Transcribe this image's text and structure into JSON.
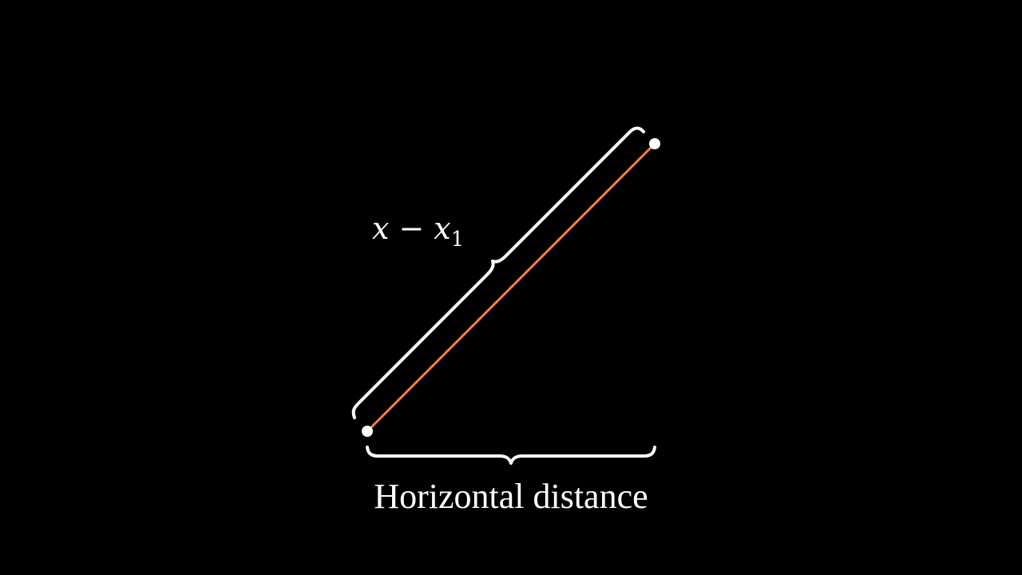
{
  "colors": {
    "background": "#000000",
    "segment": "#f5813a",
    "brace": "#ffffff",
    "point": "#ffffff",
    "text": "#ffffff"
  },
  "diagonal_label": {
    "variable": "x",
    "operator": "−",
    "variable_2": "x",
    "subscript": "1"
  },
  "horizontal_caption": "Horizontal distance"
}
